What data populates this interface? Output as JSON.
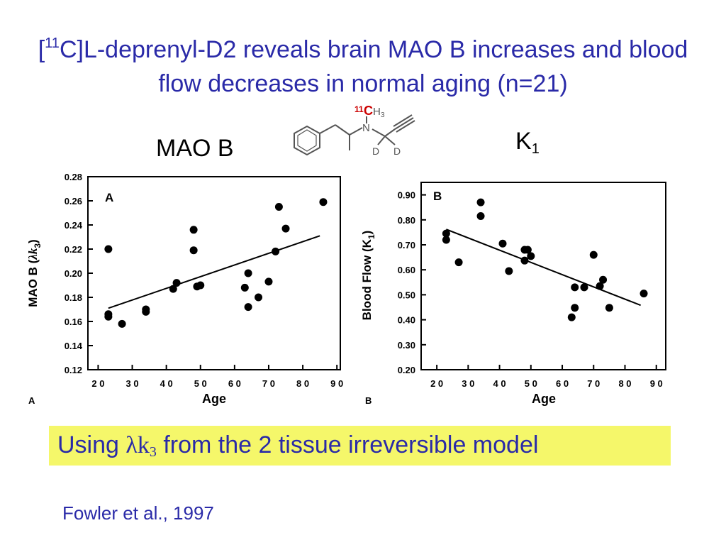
{
  "title": {
    "bracket_open": "[",
    "isotope": "11",
    "rest": "C]L-deprenyl-D2 reveals brain MAO B increases and blood flow decreases in normal aging (n=21)"
  },
  "labels": {
    "mao_b": "MAO B",
    "k": "K",
    "k_sub": "1"
  },
  "molecule": {
    "isotope": "11",
    "c": "C",
    "h3": "H",
    "h3_sub": "3",
    "n": "N",
    "d1": "D",
    "d2": "D",
    "colors": {
      "isotope": "#cc0000",
      "bonds": "#555555"
    }
  },
  "chart_data": [
    {
      "type": "scatter",
      "panel": "A",
      "corner_label": "A",
      "xlabel": "Age",
      "ylabel_main": "MAO B (",
      "ylabel_symbol": "λk",
      "ylabel_sub": "3",
      "ylabel_close": ")",
      "xlim": [
        17,
        91
      ],
      "ylim": [
        0.12,
        0.28
      ],
      "xticks": [
        20,
        30,
        40,
        50,
        60,
        70,
        80,
        90
      ],
      "xtick_labels": [
        "2 0",
        "3 0",
        "4 0",
        "5 0",
        "6 0",
        "7 0",
        "8 0",
        "9 0"
      ],
      "yticks": [
        0.12,
        0.14,
        0.16,
        0.18,
        0.2,
        0.22,
        0.24,
        0.26,
        0.28
      ],
      "ytick_labels": [
        "0.12",
        "0.14",
        "0.16",
        "0.18",
        "0.20",
        "0.22",
        "0.24",
        "0.26",
        "0.28"
      ],
      "points": [
        {
          "x": 23,
          "y": 0.22
        },
        {
          "x": 23,
          "y": 0.166
        },
        {
          "x": 23,
          "y": 0.164
        },
        {
          "x": 27,
          "y": 0.158
        },
        {
          "x": 34,
          "y": 0.17
        },
        {
          "x": 34,
          "y": 0.168
        },
        {
          "x": 42,
          "y": 0.187
        },
        {
          "x": 43,
          "y": 0.192
        },
        {
          "x": 48,
          "y": 0.236
        },
        {
          "x": 48,
          "y": 0.219
        },
        {
          "x": 49,
          "y": 0.189
        },
        {
          "x": 50,
          "y": 0.19
        },
        {
          "x": 63,
          "y": 0.188
        },
        {
          "x": 64,
          "y": 0.2
        },
        {
          "x": 64,
          "y": 0.172
        },
        {
          "x": 67,
          "y": 0.18
        },
        {
          "x": 70,
          "y": 0.193
        },
        {
          "x": 72,
          "y": 0.218
        },
        {
          "x": 73,
          "y": 0.255
        },
        {
          "x": 75,
          "y": 0.237
        },
        {
          "x": 86,
          "y": 0.259
        }
      ],
      "fit_line": {
        "x": [
          23,
          85
        ],
        "y": [
          0.171,
          0.231
        ]
      },
      "grid": false
    },
    {
      "type": "scatter",
      "panel": "B",
      "corner_label": "B",
      "xlabel": "Age",
      "ylabel_main": "Blood Flow (K",
      "ylabel_sub": "1",
      "ylabel_close": ")",
      "xlim": [
        15,
        93
      ],
      "ylim": [
        0.2,
        0.95
      ],
      "xticks": [
        20,
        30,
        40,
        50,
        60,
        70,
        80,
        90
      ],
      "xtick_labels": [
        "2 0",
        "3 0",
        "4 0",
        "5 0",
        "6 0",
        "7 0",
        "8 0",
        "9 0"
      ],
      "yticks": [
        0.2,
        0.3,
        0.4,
        0.5,
        0.6,
        0.7,
        0.8,
        0.9
      ],
      "ytick_labels": [
        "0.20",
        "0.30",
        "0.40",
        "0.50",
        "0.60",
        "0.70",
        "0.80",
        "0.90"
      ],
      "points": [
        {
          "x": 23,
          "y": 0.745
        },
        {
          "x": 23,
          "y": 0.72
        },
        {
          "x": 27,
          "y": 0.63
        },
        {
          "x": 34,
          "y": 0.87
        },
        {
          "x": 34,
          "y": 0.815
        },
        {
          "x": 41,
          "y": 0.705
        },
        {
          "x": 43,
          "y": 0.595
        },
        {
          "x": 48,
          "y": 0.68
        },
        {
          "x": 48,
          "y": 0.637
        },
        {
          "x": 49,
          "y": 0.68
        },
        {
          "x": 50,
          "y": 0.655
        },
        {
          "x": 63,
          "y": 0.41
        },
        {
          "x": 64,
          "y": 0.53
        },
        {
          "x": 64,
          "y": 0.448
        },
        {
          "x": 67,
          "y": 0.53
        },
        {
          "x": 70,
          "y": 0.66
        },
        {
          "x": 72,
          "y": 0.535
        },
        {
          "x": 73,
          "y": 0.56
        },
        {
          "x": 75,
          "y": 0.448
        },
        {
          "x": 86,
          "y": 0.505
        }
      ],
      "fit_line": {
        "x": [
          23,
          85
        ],
        "y": [
          0.762,
          0.458
        ]
      },
      "grid": false
    }
  ],
  "highlight": {
    "prefix": "Using ",
    "symbol": "λk",
    "sub": "3",
    "suffix": " from the 2 tissue irreversible model",
    "background": "#f5f76a"
  },
  "citation": "Fowler et al., 1997",
  "colors": {
    "title_text": "#2a2aa8"
  }
}
